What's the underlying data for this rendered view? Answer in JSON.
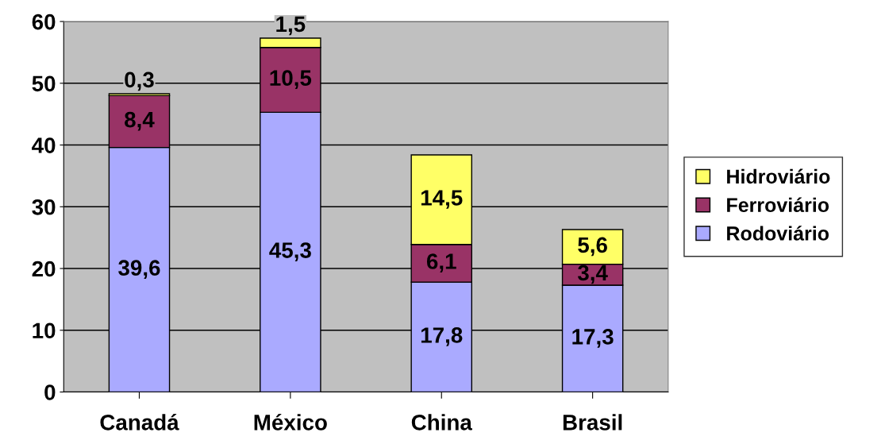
{
  "chart_data": {
    "type": "bar",
    "stacked": true,
    "categories": [
      "Canadá",
      "México",
      "China",
      "Brasil"
    ],
    "series": [
      {
        "name": "Rodoviário",
        "color": "#aaaaff",
        "values": [
          39.6,
          45.3,
          17.8,
          17.3
        ],
        "value_labels": [
          "39,6",
          "45,3",
          "17,8",
          "17,3"
        ]
      },
      {
        "name": "Ferroviário",
        "color": "#993366",
        "values": [
          8.4,
          10.5,
          6.1,
          3.4
        ],
        "value_labels": [
          "8,4",
          "10,5",
          "6,1",
          "3,4"
        ]
      },
      {
        "name": "Hidroviário",
        "color": "#ffff66",
        "values": [
          0.3,
          1.5,
          14.5,
          5.6
        ],
        "value_labels": [
          "0,3",
          "1,5",
          "14,5",
          "5,6"
        ]
      }
    ],
    "ylim": [
      0,
      60
    ],
    "yticks": [
      0,
      10,
      20,
      30,
      40,
      50,
      60
    ],
    "grid": "y",
    "legend": "right"
  }
}
